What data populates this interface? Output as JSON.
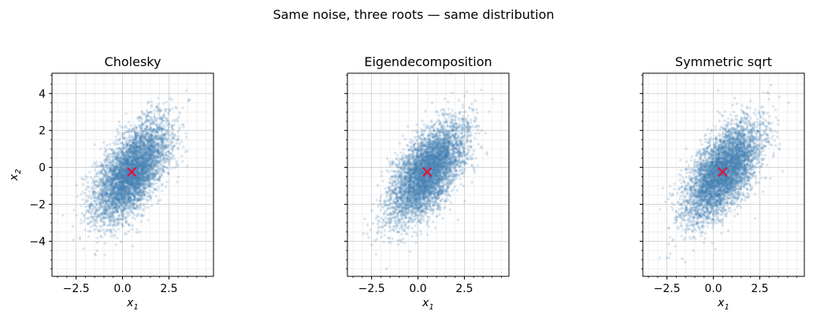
{
  "figure": {
    "suptitle": "Same noise, three roots — same distribution"
  },
  "chart_data": [
    {
      "type": "scatter",
      "title": "Cholesky",
      "xlabel": "x1",
      "ylabel": "x2",
      "xlim": [
        -3.8,
        4.9
      ],
      "ylim": [
        -5.9,
        5.1
      ],
      "x_ticks": [
        -2.5,
        0.0,
        2.5
      ],
      "x_tick_labels": [
        "−2.5",
        "0.0",
        "2.5"
      ],
      "y_ticks": [
        4,
        2,
        0,
        -2,
        -4
      ],
      "y_tick_labels": [
        "4",
        "2",
        "0",
        "−2",
        "−4"
      ],
      "grid": true,
      "point_color": "#4682b4",
      "marker": {
        "x": 0.5,
        "y": -0.25,
        "symbol": "x",
        "color": "#dc143c"
      },
      "distribution": {
        "mean": [
          0.5,
          -0.25
        ],
        "std": [
          1.0,
          1.3
        ],
        "correlation": 0.6,
        "n_points": 5000
      }
    },
    {
      "type": "scatter",
      "title": "Eigendecomposition",
      "xlabel": "x1",
      "ylabel": "",
      "xlim": [
        -3.8,
        4.9
      ],
      "ylim": [
        -5.9,
        5.1
      ],
      "x_ticks": [
        -2.5,
        0.0,
        2.5
      ],
      "x_tick_labels": [
        "−2.5",
        "0.0",
        "2.5"
      ],
      "y_ticks": [
        4,
        2,
        0,
        -2,
        -4
      ],
      "y_tick_labels": [],
      "grid": true,
      "point_color": "#4682b4",
      "marker": {
        "x": 0.5,
        "y": -0.25,
        "symbol": "x",
        "color": "#dc143c"
      },
      "distribution": {
        "mean": [
          0.5,
          -0.25
        ],
        "std": [
          1.0,
          1.3
        ],
        "correlation": 0.6,
        "n_points": 5000
      }
    },
    {
      "type": "scatter",
      "title": "Symmetric sqrt",
      "xlabel": "x1",
      "ylabel": "",
      "xlim": [
        -3.8,
        4.9
      ],
      "ylim": [
        -5.9,
        5.1
      ],
      "x_ticks": [
        -2.5,
        0.0,
        2.5
      ],
      "x_tick_labels": [
        "−2.5",
        "0.0",
        "2.5"
      ],
      "y_ticks": [
        4,
        2,
        0,
        -2,
        -4
      ],
      "y_tick_labels": [],
      "grid": true,
      "point_color": "#4682b4",
      "marker": {
        "x": 0.5,
        "y": -0.25,
        "symbol": "x",
        "color": "#dc143c"
      },
      "distribution": {
        "mean": [
          0.5,
          -0.25
        ],
        "std": [
          1.0,
          1.3
        ],
        "correlation": 0.6,
        "n_points": 5000
      }
    }
  ]
}
